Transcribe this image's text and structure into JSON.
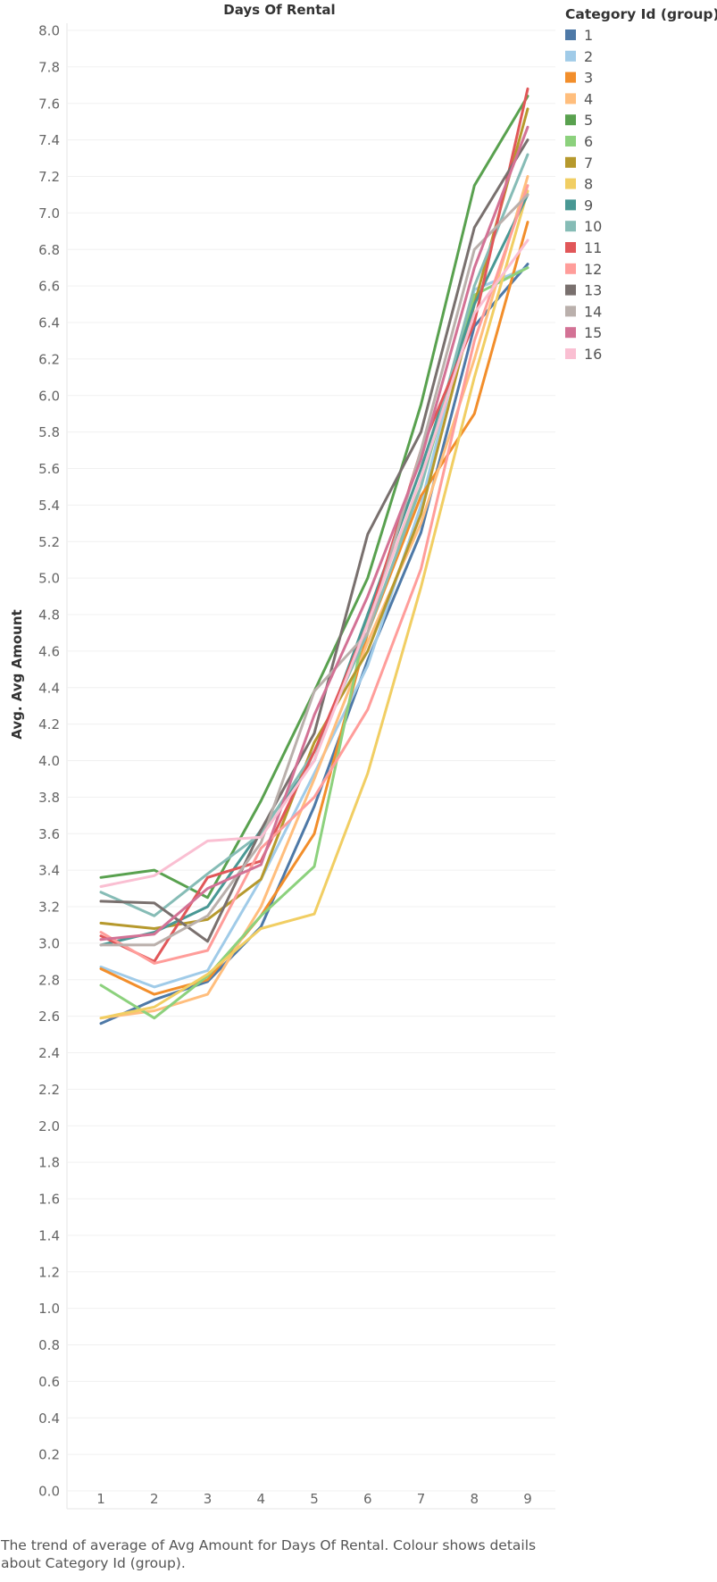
{
  "caption": "The trend of average of Avg Amount for Days Of Rental. Colour shows details about Category Id (group).",
  "chart_data": {
    "type": "line",
    "title": "Days Of Rental",
    "xlabel": "Days Of Rental",
    "ylabel": "Avg. Avg Amount",
    "x": [
      1,
      2,
      3,
      4,
      5,
      6,
      7,
      8,
      9
    ],
    "ylim": [
      0,
      8
    ],
    "yticks": [
      0.0,
      0.2,
      0.4,
      0.6,
      0.8,
      1.0,
      1.2,
      1.4,
      1.6,
      1.8,
      2.0,
      2.2,
      2.4,
      2.6,
      2.8,
      3.0,
      3.2,
      3.4,
      3.6,
      3.8,
      4.0,
      4.2,
      4.4,
      4.6,
      4.8,
      5.0,
      5.2,
      5.4,
      5.6,
      5.8,
      6.0,
      6.2,
      6.4,
      6.6,
      6.8,
      7.0,
      7.2,
      7.4,
      7.6,
      7.8,
      8.0
    ],
    "grid": true,
    "legend_title": "Category Id (group)",
    "legend_position": "right",
    "series": [
      {
        "name": "1",
        "color": "#4e79a7",
        "values": [
          2.56,
          2.69,
          2.79,
          3.09,
          3.75,
          4.55,
          5.25,
          6.38,
          6.72
        ]
      },
      {
        "name": "2",
        "color": "#a0cbe8",
        "values": [
          2.87,
          2.76,
          2.85,
          3.35,
          3.93,
          4.52,
          5.4,
          6.58,
          6.7
        ]
      },
      {
        "name": "3",
        "color": "#f28e2b",
        "values": [
          2.86,
          2.72,
          2.8,
          3.15,
          3.6,
          4.7,
          5.45,
          5.9,
          6.95
        ]
      },
      {
        "name": "4",
        "color": "#ffbe7d",
        "values": [
          2.59,
          2.63,
          2.72,
          3.2,
          3.9,
          4.65,
          5.3,
          6.2,
          7.2
        ]
      },
      {
        "name": "5",
        "color": "#59a14f",
        "values": [
          3.36,
          3.4,
          3.25,
          3.78,
          4.38,
          5.0,
          5.95,
          7.15,
          7.64
        ]
      },
      {
        "name": "6",
        "color": "#8cd17d",
        "values": [
          2.77,
          2.59,
          2.82,
          3.15,
          3.42,
          4.8,
          5.5,
          6.55,
          6.7
        ]
      },
      {
        "name": "7",
        "color": "#b6992d",
        "values": [
          3.11,
          3.08,
          3.13,
          3.35,
          4.1,
          4.6,
          5.35,
          6.5,
          7.57
        ]
      },
      {
        "name": "8",
        "color": "#f1ce63",
        "values": [
          2.59,
          2.65,
          2.83,
          3.08,
          3.16,
          3.93,
          4.95,
          6.1,
          7.12
        ]
      },
      {
        "name": "9",
        "color": "#499894",
        "values": [
          2.99,
          3.06,
          3.2,
          3.62,
          4.0,
          4.8,
          5.6,
          6.5,
          7.1
        ]
      },
      {
        "name": "10",
        "color": "#86bcb6",
        "values": [
          3.28,
          3.15,
          3.38,
          3.6,
          4.05,
          4.7,
          5.5,
          6.6,
          7.32
        ]
      },
      {
        "name": "11",
        "color": "#e15759",
        "values": [
          3.04,
          2.9,
          3.36,
          3.45,
          4.05,
          4.75,
          5.7,
          6.4,
          7.68
        ]
      },
      {
        "name": "12",
        "color": "#ff9d9a",
        "values": [
          3.06,
          2.89,
          2.96,
          3.52,
          3.8,
          4.28,
          5.05,
          6.3,
          7.15
        ]
      },
      {
        "name": "13",
        "color": "#79706e",
        "values": [
          3.23,
          3.22,
          3.01,
          3.62,
          4.15,
          5.24,
          5.8,
          6.92,
          7.4
        ]
      },
      {
        "name": "14",
        "color": "#bab0ac",
        "values": [
          2.99,
          2.99,
          3.15,
          3.55,
          4.38,
          4.7,
          5.7,
          6.8,
          7.1
        ]
      },
      {
        "name": "15",
        "color": "#d37295",
        "values": [
          3.02,
          3.05,
          3.3,
          3.43,
          4.25,
          4.9,
          5.65,
          6.7,
          7.47
        ]
      },
      {
        "name": "16",
        "color": "#fabfd2",
        "values": [
          3.31,
          3.37,
          3.56,
          3.58,
          4.0,
          4.75,
          5.55,
          6.45,
          6.85
        ]
      }
    ]
  }
}
